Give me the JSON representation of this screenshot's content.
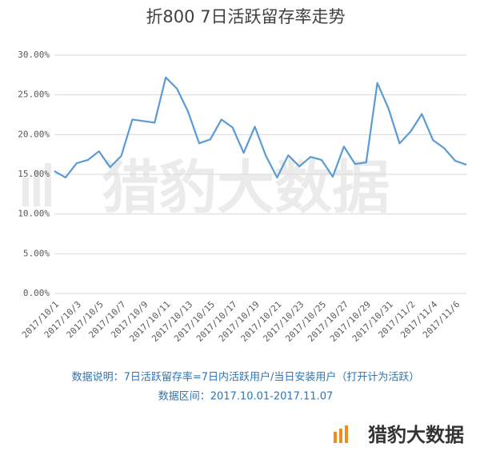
{
  "chart_data": {
    "type": "line",
    "title": "折800 7日活跃留存率走势",
    "categories": [
      "2017/10/1",
      null,
      "2017/10/3",
      null,
      "2017/10/5",
      null,
      "2017/10/7",
      null,
      "2017/10/9",
      null,
      "2017/10/11",
      null,
      "2017/10/13",
      null,
      "2017/10/15",
      null,
      "2017/10/17",
      null,
      "2017/10/19",
      null,
      "2017/10/21",
      null,
      "2017/10/23",
      null,
      "2017/10/25",
      null,
      "2017/10/27",
      null,
      "2017/10/29",
      null,
      "2017/10/31",
      null,
      "2017/11/2",
      null,
      "2017/11/4",
      null,
      "2017/11/6",
      null
    ],
    "values": [
      15.4,
      14.6,
      16.4,
      16.8,
      17.9,
      15.9,
      17.3,
      21.9,
      21.7,
      21.5,
      27.2,
      25.8,
      22.9,
      18.9,
      19.4,
      21.9,
      20.9,
      17.7,
      21.0,
      17.3,
      14.6,
      17.4,
      16.0,
      17.2,
      16.8,
      14.7,
      18.5,
      16.3,
      16.5,
      26.5,
      23.3,
      18.9,
      20.4,
      22.6,
      19.3,
      18.3,
      16.7,
      16.2
    ],
    "color": "#5b9bd5",
    "ylim": [
      0,
      30
    ],
    "yticks": [
      {
        "value": 0,
        "label": "0.00%"
      },
      {
        "value": 5,
        "label": "5.00%"
      },
      {
        "value": 10,
        "label": "10.00%"
      },
      {
        "value": 15,
        "label": "15.00%"
      },
      {
        "value": 20,
        "label": "20.00%"
      },
      {
        "value": 25,
        "label": "25.00%"
      },
      {
        "value": 30,
        "label": "30.00%"
      }
    ],
    "grid": true,
    "watermark": "猎豹大数据",
    "notes": [
      "数据说明：7日活跃留存率=7日内活跃用户/当日安装用户（打开计为活跃）",
      "数据区间：2017.10.01-2017.11.07"
    ],
    "brand": "猎豹大数据"
  }
}
